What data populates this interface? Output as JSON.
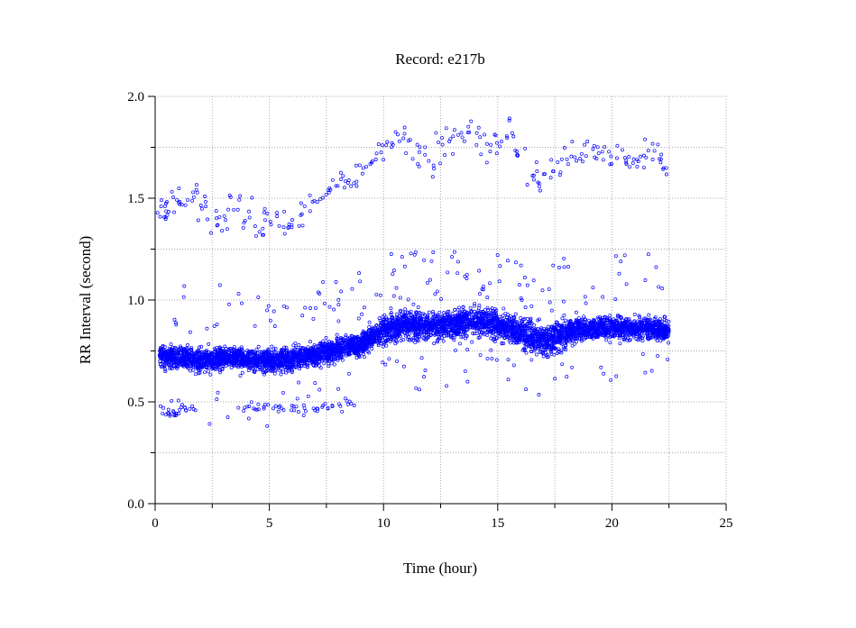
{
  "chart_data": {
    "type": "scatter",
    "title": "Record:  e217b",
    "xlabel": "Time (hour)",
    "ylabel": "RR Interval (second)",
    "xlim": [
      0,
      25
    ],
    "ylim": [
      0,
      2.0
    ],
    "xticks": [
      {
        "value": 0,
        "label": "0"
      },
      {
        "value": 5,
        "label": "5"
      },
      {
        "value": 10,
        "label": "10"
      },
      {
        "value": 15,
        "label": "15"
      },
      {
        "value": 20,
        "label": "20"
      },
      {
        "value": 25,
        "label": "25"
      }
    ],
    "yticks": [
      {
        "value": 0.0,
        "label": "0.0"
      },
      {
        "value": 0.5,
        "label": "0.5"
      },
      {
        "value": 1.0,
        "label": "1.0"
      },
      {
        "value": 1.5,
        "label": "1.5"
      },
      {
        "value": 2.0,
        "label": "2.0"
      }
    ],
    "grid": true,
    "grid_style": "dotted",
    "marker_color": "#0000ff",
    "series": [
      {
        "description_trend": [
          [
            0.2,
            0.73
          ],
          [
            1.0,
            0.72
          ],
          [
            2.0,
            0.7
          ],
          [
            3.0,
            0.72
          ],
          [
            4.0,
            0.71
          ],
          [
            5.0,
            0.7
          ],
          [
            6.0,
            0.71
          ],
          [
            7.0,
            0.73
          ],
          [
            8.0,
            0.76
          ],
          [
            9.0,
            0.78
          ],
          [
            9.5,
            0.82
          ],
          [
            10.0,
            0.86
          ],
          [
            11.0,
            0.88
          ],
          [
            12.0,
            0.87
          ],
          [
            13.0,
            0.88
          ],
          [
            14.0,
            0.9
          ],
          [
            15.0,
            0.88
          ],
          [
            16.0,
            0.84
          ],
          [
            16.5,
            0.82
          ],
          [
            17.0,
            0.8
          ],
          [
            18.0,
            0.84
          ],
          [
            19.0,
            0.86
          ],
          [
            20.0,
            0.87
          ],
          [
            21.0,
            0.86
          ],
          [
            22.0,
            0.86
          ],
          [
            22.5,
            0.85
          ]
        ],
        "upper_cluster": [
          [
            0.3,
            1.42
          ],
          [
            0.5,
            1.47
          ],
          [
            0.8,
            1.5
          ],
          [
            1.2,
            1.45
          ],
          [
            1.6,
            1.55
          ],
          [
            2.0,
            1.45
          ],
          [
            2.5,
            1.38
          ],
          [
            3.0,
            1.42
          ],
          [
            3.5,
            1.48
          ],
          [
            4.0,
            1.4
          ],
          [
            4.5,
            1.35
          ],
          [
            5.0,
            1.42
          ],
          [
            5.5,
            1.38
          ],
          [
            6.0,
            1.36
          ],
          [
            6.5,
            1.4
          ],
          [
            7.0,
            1.48
          ],
          [
            7.5,
            1.52
          ],
          [
            8.0,
            1.58
          ],
          [
            8.5,
            1.6
          ],
          [
            9.0,
            1.62
          ],
          [
            9.5,
            1.7
          ],
          [
            10.0,
            1.76
          ],
          [
            10.5,
            1.8
          ],
          [
            11.0,
            1.78
          ],
          [
            11.5,
            1.72
          ],
          [
            12.0,
            1.7
          ],
          [
            12.5,
            1.75
          ],
          [
            13.0,
            1.78
          ],
          [
            13.5,
            1.82
          ],
          [
            14.0,
            1.8
          ],
          [
            14.5,
            1.76
          ],
          [
            15.0,
            1.78
          ],
          [
            15.5,
            1.82
          ],
          [
            16.0,
            1.7
          ],
          [
            16.5,
            1.62
          ],
          [
            17.0,
            1.6
          ],
          [
            17.5,
            1.65
          ],
          [
            18.0,
            1.68
          ],
          [
            18.5,
            1.72
          ],
          [
            19.0,
            1.75
          ],
          [
            19.5,
            1.7
          ],
          [
            20.0,
            1.72
          ],
          [
            20.5,
            1.7
          ],
          [
            21.0,
            1.68
          ],
          [
            21.5,
            1.7
          ],
          [
            22.0,
            1.72
          ],
          [
            22.3,
            1.65
          ]
        ],
        "lower_cluster": [
          [
            0.4,
            0.46
          ],
          [
            0.7,
            0.44
          ],
          [
            1.0,
            0.45
          ],
          [
            1.3,
            0.47
          ],
          [
            1.5,
            0.46
          ],
          [
            4.0,
            0.48
          ],
          [
            4.5,
            0.47
          ],
          [
            5.0,
            0.48
          ],
          [
            5.5,
            0.47
          ],
          [
            6.0,
            0.47
          ],
          [
            6.5,
            0.46
          ],
          [
            7.0,
            0.47
          ],
          [
            7.5,
            0.48
          ],
          [
            8.0,
            0.47
          ],
          [
            8.5,
            0.49
          ]
        ]
      }
    ]
  }
}
